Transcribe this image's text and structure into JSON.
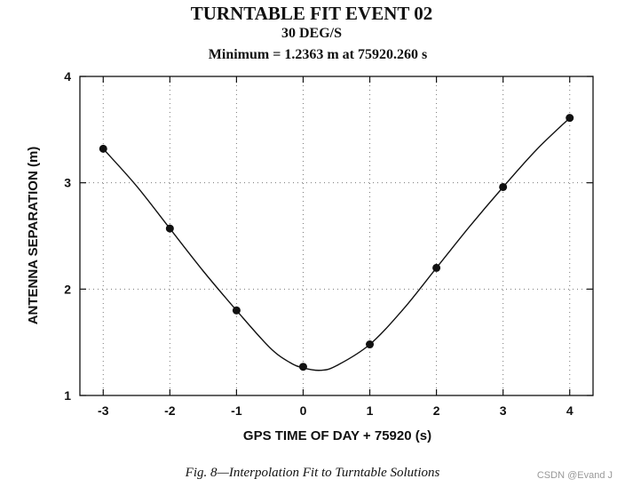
{
  "chart_data": {
    "type": "scatter",
    "title": "TURNTABLE FIT EVENT 02",
    "subtitle": "30 DEG/S",
    "subtitle2": "Minimum = 1.2363 m at 75920.260 s",
    "xlabel": "GPS TIME OF DAY + 75920 (s)",
    "ylabel": "ANTENNA SEPARATION (m)",
    "xlim": [
      -3.35,
      4.35
    ],
    "ylim": [
      1,
      4
    ],
    "xticks": [
      -3,
      -2,
      -1,
      0,
      1,
      2,
      3,
      4
    ],
    "yticks": [
      1,
      2,
      3,
      4
    ],
    "grid": true,
    "grid_style": "dotted",
    "points": [
      {
        "x": -3,
        "y": 3.32
      },
      {
        "x": -2,
        "y": 2.57
      },
      {
        "x": -1,
        "y": 1.8
      },
      {
        "x": 0,
        "y": 1.27
      },
      {
        "x": 1,
        "y": 1.48
      },
      {
        "x": 2,
        "y": 2.2
      },
      {
        "x": 3,
        "y": 2.96
      },
      {
        "x": 4,
        "y": 3.61
      }
    ],
    "fit_curve": {
      "x": [
        -3,
        -2.5,
        -2,
        -1.5,
        -1,
        -0.5,
        -0.2,
        0,
        0.26,
        0.5,
        1,
        1.5,
        2,
        2.5,
        3,
        3.5,
        4
      ],
      "y": [
        3.32,
        2.97,
        2.57,
        2.17,
        1.8,
        1.45,
        1.31,
        1.26,
        1.2363,
        1.28,
        1.48,
        1.81,
        2.2,
        2.59,
        2.96,
        3.31,
        3.61
      ]
    },
    "colors": {
      "line": "#111111",
      "marker": "#111111",
      "grid": "#777777"
    }
  },
  "caption": "Fig. 8—Interpolation Fit to Turntable Solutions",
  "watermark": "CSDN @Evand J"
}
